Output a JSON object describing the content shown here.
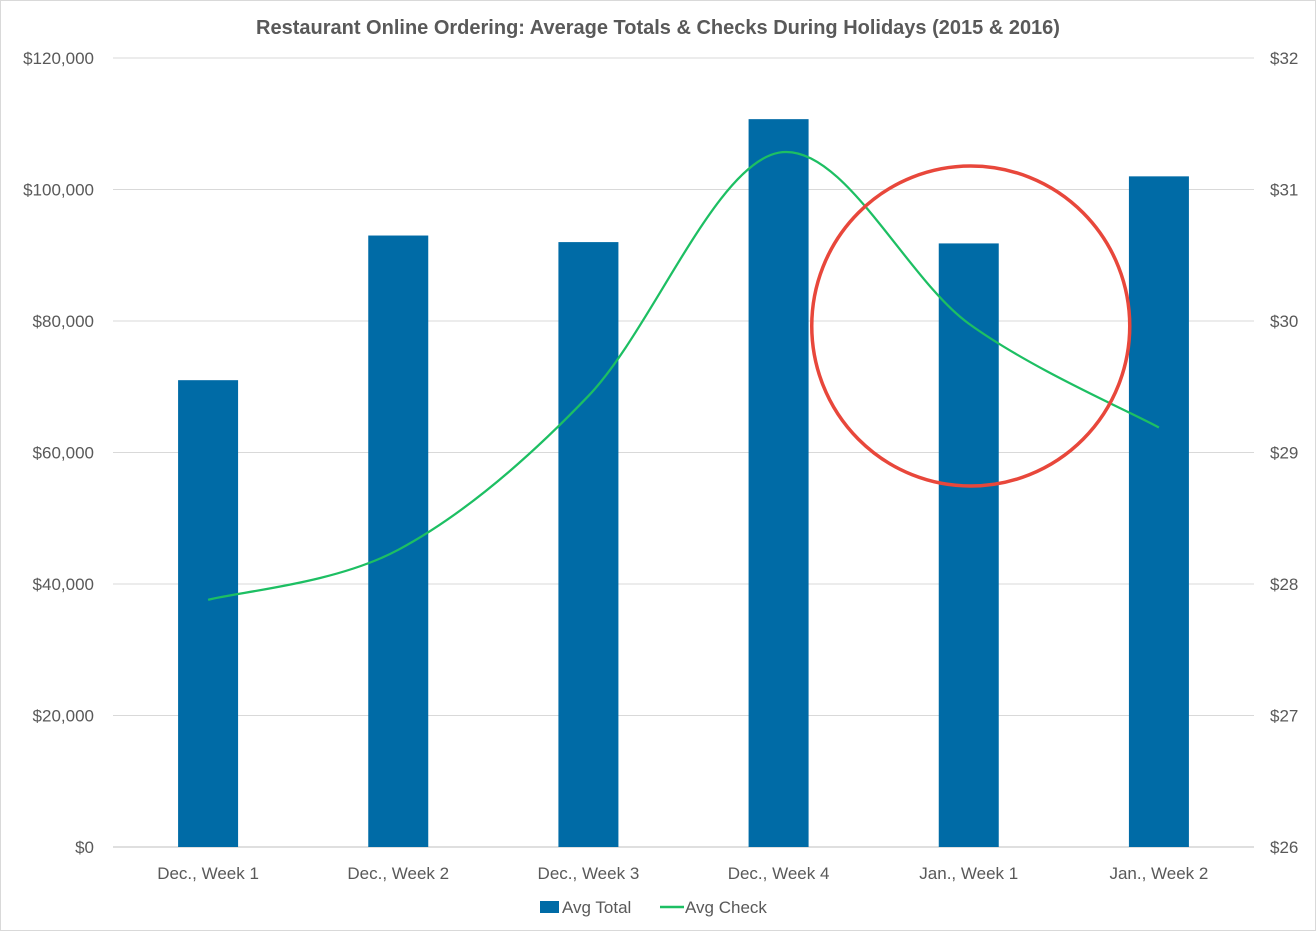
{
  "chart_data": {
    "type": "bar",
    "title": "Restaurant Online Ordering: Average Totals & Checks During Holidays (2015 & 2016)",
    "categories": [
      "Dec., Week 1",
      "Dec., Week 2",
      "Dec., Week 3",
      "Dec., Week 4",
      "Jan., Week 1",
      "Jan., Week 2"
    ],
    "series": [
      {
        "name": "Avg Total",
        "type": "bar",
        "axis": "left",
        "color": "#006ba6",
        "values": [
          71000,
          93000,
          92000,
          110700,
          91800,
          102000
        ]
      },
      {
        "name": "Avg Check",
        "type": "line",
        "smooth": true,
        "axis": "right",
        "color": "#1dbf63",
        "values": [
          27.88,
          28.26,
          29.43,
          31.28,
          29.98,
          29.19
        ]
      }
    ],
    "y_left": {
      "range": [
        0,
        120000
      ],
      "ticks": [
        0,
        20000,
        40000,
        60000,
        80000,
        100000,
        120000
      ],
      "tick_labels": [
        "$0",
        "$20,000",
        "$40,000",
        "$60,000",
        "$80,000",
        "$100,000",
        "$120,000"
      ]
    },
    "y_right": {
      "range": [
        26,
        32
      ],
      "ticks": [
        26,
        27,
        28,
        29,
        30,
        31,
        32
      ],
      "tick_labels": [
        "$26",
        "$27",
        "$28",
        "$29",
        "$30",
        "$31",
        "$32"
      ]
    },
    "grid": true,
    "legend_position": "bottom",
    "annotation": {
      "shape": "circle",
      "color": "#e8473b",
      "category": "Jan., Week 1"
    }
  }
}
